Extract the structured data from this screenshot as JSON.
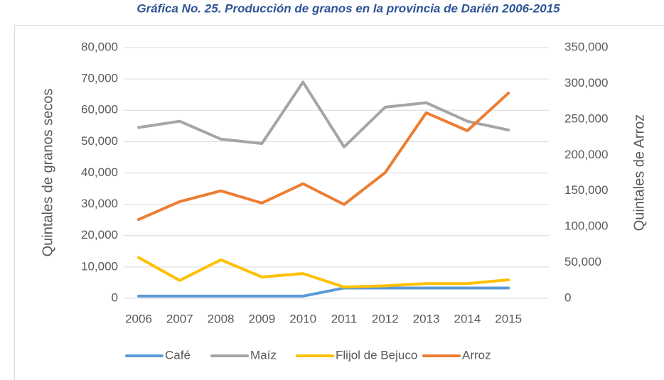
{
  "chart_data": {
    "type": "line",
    "title": "Gráfica No. 25. Producción de granos en la provincia de Darién 2006-2015",
    "y_label": "Quintales de granos secos",
    "y2_label": "Quintales de Arroz",
    "categories": [
      "2006",
      "2007",
      "2008",
      "2009",
      "2010",
      "2011",
      "2012",
      "2013",
      "2014",
      "2015"
    ],
    "series": [
      {
        "name": "Café",
        "color": "#5B9BD5",
        "values": [
          700,
          700,
          700,
          700,
          700,
          3300,
          3300,
          3300,
          3300,
          3300
        ]
      },
      {
        "name": "Maíz",
        "color": "#A5A5A5",
        "values": [
          54500,
          56500,
          50800,
          49400,
          69000,
          48300,
          61000,
          62400,
          56500,
          53700
        ]
      },
      {
        "name": "Flijol de Bejuco",
        "color": "#FFC000",
        "values": [
          13000,
          5700,
          12300,
          6800,
          7900,
          3600,
          4000,
          4700,
          4700,
          5900
        ]
      },
      {
        "name": "Arroz",
        "color": "#ED7D31",
        "axis": "y2",
        "values": [
          110000,
          135000,
          150000,
          133000,
          160000,
          131000,
          175500,
          259000,
          234000,
          286500
        ]
      }
    ],
    "ylim": [
      0,
      80000
    ],
    "yticks": [
      0,
      {
        "value": 10000,
        "label": "10,000"
      },
      {
        "value": 20000,
        "label": "20,000"
      },
      {
        "value": 30000,
        "label": "30,000"
      },
      {
        "value": 40000,
        "label": "40,000"
      },
      {
        "value": 50000,
        "label": "50,000"
      },
      {
        "value": 60000,
        "label": "60,000"
      },
      {
        "value": 70000,
        "label": "70,000"
      },
      {
        "value": 80000,
        "label": "80,000"
      }
    ],
    "y2lim": [
      0,
      350000
    ],
    "y2ticks": [
      0,
      {
        "value": 50000,
        "label": "50,000"
      },
      {
        "value": 100000,
        "label": "100,000"
      },
      {
        "value": 150000,
        "label": "150,000"
      },
      {
        "value": 200000,
        "label": "200,000"
      },
      {
        "value": 250000,
        "label": "250,000"
      },
      {
        "value": 300000,
        "label": "300,000"
      },
      {
        "value": 350000,
        "label": "350,000"
      }
    ],
    "grid": true,
    "legend": "bottom"
  }
}
